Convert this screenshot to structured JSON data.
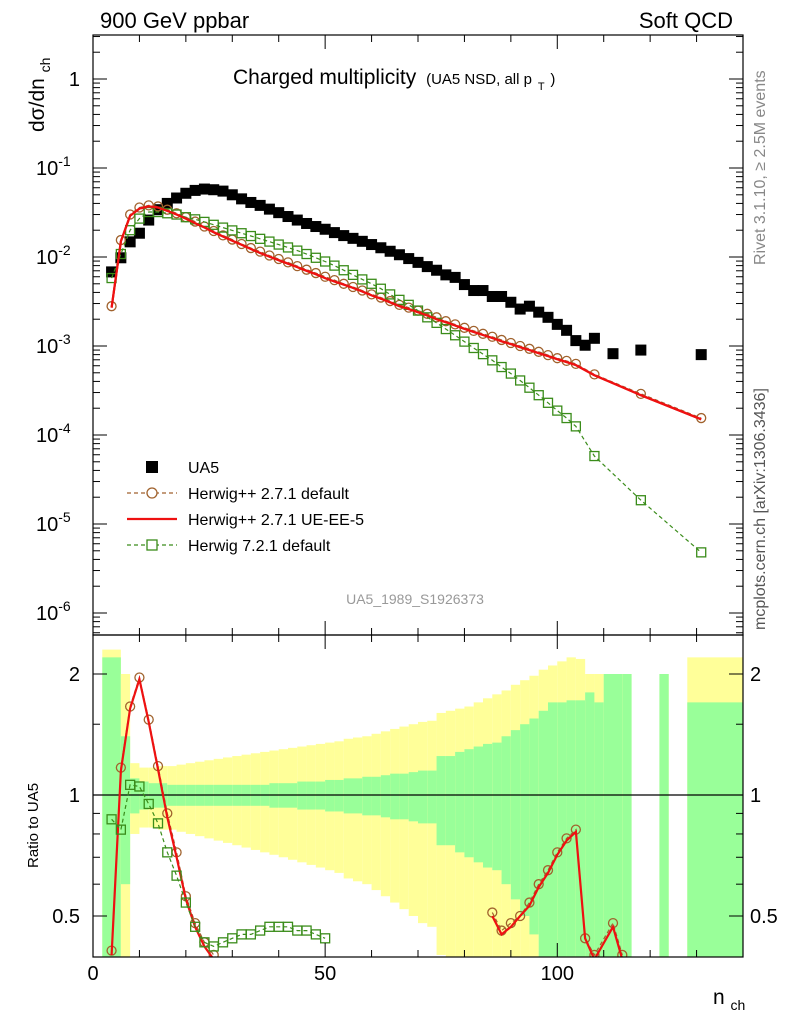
{
  "header": {
    "left_label": "900 GeV ppbar",
    "right_label": "Soft QCD"
  },
  "side_labels": {
    "rivet": "Rivet 3.1.10, ≥ 2.5M events",
    "mcplots": "mcplots.cern.ch [arXiv:1306.3436]"
  },
  "main_plot": {
    "title": "Charged multiplicity",
    "title_sub_prefix": "(UA5 NSD, all p",
    "title_sub_subscript": "T",
    "title_sub_suffix": ")",
    "ylabel_prefix": "dσ/dn",
    "ylabel_subscript": "ch",
    "analysis_label": "UA5_1989_S1926373",
    "y_tick_labels": {
      "one": "1",
      "ten": "10",
      "exponents": [
        "-1",
        "-2",
        "-3",
        "-4",
        "-5",
        "-6"
      ]
    }
  },
  "ratio_plot": {
    "ylabel": "Ratio to UA5",
    "y_tick_labels": [
      "2",
      "1",
      "0.5"
    ],
    "x_tick_labels": [
      "0",
      "50",
      "100"
    ],
    "xlabel_prefix": "n",
    "xlabel_subscript": "ch"
  },
  "legend": [
    {
      "label": "UA5",
      "color": "#000000",
      "marker": "square-filled",
      "line": "none"
    },
    {
      "label": "Herwig++ 2.7.1 default",
      "color": "#a0622d",
      "marker": "circle-open",
      "line": "dashed"
    },
    {
      "label": "Herwig++ 2.7.1 UE-EE-5",
      "color": "#ee1111",
      "marker": "none",
      "line": "solid"
    },
    {
      "label": "Herwig 7.2.1 default",
      "color": "#3a8c1a",
      "marker": "square-open",
      "line": "dashed"
    }
  ],
  "chart_data": [
    {
      "type": "scatter",
      "title": "Charged multiplicity (UA5 NSD, all pT)",
      "xlabel": "n_ch",
      "ylabel": "dσ/dn_ch",
      "yscale": "log",
      "xlim": [
        0,
        140
      ],
      "ylim": [
        5e-07,
        3
      ],
      "legend_position": "bottom-left",
      "series": [
        {
          "name": "UA5",
          "x": [
            4,
            6,
            8,
            10,
            12,
            14,
            16,
            18,
            20,
            22,
            24,
            26,
            28,
            30,
            32,
            34,
            36,
            38,
            40,
            42,
            44,
            46,
            48,
            50,
            52,
            54,
            56,
            58,
            60,
            62,
            64,
            66,
            68,
            70,
            72,
            74,
            76,
            78,
            80,
            82,
            84,
            86,
            88,
            90,
            92,
            94,
            96,
            98,
            100,
            102,
            104,
            106,
            108,
            112,
            118,
            131
          ],
          "values": [
            0.0068,
            0.0098,
            0.0148,
            0.0185,
            0.026,
            0.034,
            0.04,
            0.046,
            0.052,
            0.056,
            0.058,
            0.057,
            0.055,
            0.05,
            0.045,
            0.041,
            0.038,
            0.0345,
            0.0315,
            0.0285,
            0.026,
            0.0238,
            0.022,
            0.0205,
            0.0188,
            0.0174,
            0.0162,
            0.015,
            0.0138,
            0.0127,
            0.0116,
            0.0106,
            0.0096,
            0.0087,
            0.0078,
            0.0071,
            0.0063,
            0.0059,
            0.0049,
            0.0042,
            0.0042,
            0.0036,
            0.0036,
            0.0031,
            0.0026,
            0.0028,
            0.0024,
            0.0021,
            0.00175,
            0.0015,
            0.00115,
            0.00102,
            0.00122,
            0.00082,
            0.0009,
            0.0008
          ]
        },
        {
          "name": "Herwig++ 2.7.1 default",
          "x": [
            4,
            6,
            8,
            10,
            12,
            14,
            16,
            18,
            20,
            22,
            24,
            26,
            28,
            30,
            32,
            34,
            36,
            38,
            40,
            42,
            44,
            46,
            48,
            50,
            52,
            54,
            56,
            58,
            60,
            62,
            64,
            66,
            68,
            70,
            72,
            74,
            76,
            78,
            80,
            82,
            84,
            86,
            88,
            90,
            92,
            94,
            96,
            98,
            100,
            102,
            104,
            108,
            118,
            131
          ],
          "values": [
            0.0028,
            0.0155,
            0.03,
            0.036,
            0.038,
            0.037,
            0.034,
            0.031,
            0.028,
            0.025,
            0.022,
            0.0196,
            0.0175,
            0.0157,
            0.014,
            0.0126,
            0.0115,
            0.0104,
            0.0095,
            0.0087,
            0.0079,
            0.0072,
            0.0066,
            0.006,
            0.0055,
            0.005,
            0.0046,
            0.0042,
            0.0038,
            0.0035,
            0.0032,
            0.0029,
            0.0027,
            0.0025,
            0.0023,
            0.0021,
            0.0019,
            0.00175,
            0.0016,
            0.00148,
            0.00137,
            0.00127,
            0.00117,
            0.00108,
            0.001,
            0.00093,
            0.00086,
            0.00079,
            0.00073,
            0.00068,
            0.00063,
            0.00048,
            0.00029,
            0.000155
          ]
        },
        {
          "name": "Herwig++ 2.7.1 UE-EE-5",
          "x": [
            4,
            6,
            8,
            10,
            12,
            14,
            16,
            18,
            20,
            22,
            24,
            26,
            28,
            30,
            32,
            34,
            36,
            38,
            40,
            42,
            44,
            46,
            48,
            50,
            52,
            54,
            56,
            58,
            60,
            62,
            64,
            66,
            68,
            70,
            72,
            74,
            76,
            78,
            80,
            82,
            84,
            86,
            88,
            90,
            92,
            94,
            96,
            98,
            100,
            102,
            104,
            108,
            118,
            131
          ],
          "values": [
            0.0027,
            0.015,
            0.029,
            0.035,
            0.037,
            0.036,
            0.033,
            0.03,
            0.027,
            0.024,
            0.0215,
            0.019,
            0.017,
            0.0152,
            0.0137,
            0.0123,
            0.0111,
            0.0101,
            0.0092,
            0.0084,
            0.0077,
            0.007,
            0.0064,
            0.0058,
            0.0053,
            0.0049,
            0.0045,
            0.0041,
            0.0037,
            0.0034,
            0.0031,
            0.0028,
            0.0026,
            0.0024,
            0.0022,
            0.002,
            0.00185,
            0.0017,
            0.00156,
            0.00144,
            0.00133,
            0.00123,
            0.00113,
            0.00105,
            0.00097,
            0.0009,
            0.00083,
            0.00077,
            0.00071,
            0.00066,
            0.00061,
            0.00047,
            0.00028,
            0.00015
          ]
        },
        {
          "name": "Herwig 7.2.1 default",
          "x": [
            4,
            6,
            8,
            10,
            12,
            14,
            16,
            18,
            20,
            22,
            24,
            26,
            28,
            30,
            32,
            34,
            36,
            38,
            40,
            42,
            44,
            46,
            48,
            50,
            52,
            54,
            56,
            58,
            60,
            62,
            64,
            66,
            68,
            70,
            72,
            74,
            76,
            78,
            80,
            82,
            84,
            86,
            88,
            90,
            92,
            94,
            96,
            98,
            100,
            102,
            104,
            108,
            118,
            131
          ],
          "values": [
            0.0058,
            0.0108,
            0.02,
            0.027,
            0.032,
            0.032,
            0.031,
            0.03,
            0.028,
            0.0265,
            0.0248,
            0.023,
            0.0214,
            0.0199,
            0.0185,
            0.0172,
            0.016,
            0.0149,
            0.0138,
            0.0128,
            0.0118,
            0.0108,
            0.0098,
            0.0089,
            0.008,
            0.0071,
            0.0063,
            0.0056,
            0.005,
            0.0044,
            0.0038,
            0.0033,
            0.0029,
            0.0025,
            0.0021,
            0.00182,
            0.00155,
            0.00132,
            0.00112,
            0.00095,
            0.00081,
            0.00069,
            0.00058,
            0.00049,
            0.00041,
            0.00034,
            0.00028,
            0.00023,
            0.000188,
            0.000155,
            0.000125,
            5.8e-05,
            1.85e-05,
            4.8e-06
          ]
        }
      ]
    },
    {
      "type": "line",
      "title": "",
      "xlabel": "n_ch",
      "ylabel": "Ratio to UA5",
      "xlim": [
        0,
        140
      ],
      "ylim": [
        0.42,
        2.3
      ],
      "grid": false,
      "series": [
        {
          "name": "Herwig++ 2.7.1 default",
          "x": [
            4,
            6,
            8,
            10,
            12,
            14,
            16,
            18,
            20,
            22,
            24,
            26,
            28,
            30,
            86,
            88,
            90,
            92,
            94,
            96,
            98,
            100,
            102,
            104,
            106,
            108,
            112,
            114
          ],
          "values": [
            0.41,
            1.17,
            1.66,
            1.96,
            1.54,
            1.18,
            0.9,
            0.72,
            0.56,
            0.48,
            0.43,
            0.4,
            0.38,
            0.38,
            0.51,
            0.46,
            0.48,
            0.5,
            0.54,
            0.6,
            0.65,
            0.72,
            0.78,
            0.82,
            0.44,
            0.4,
            0.48,
            0.4
          ]
        },
        {
          "name": "Herwig++ 2.7.1 UE-EE-5",
          "x": [
            4,
            6,
            8,
            10,
            12,
            14,
            16,
            18,
            20,
            22,
            24,
            26,
            28,
            30,
            86,
            88,
            90,
            92,
            94,
            96,
            98,
            100,
            102,
            104,
            106,
            108,
            112,
            114
          ],
          "values": [
            0.4,
            1.15,
            1.64,
            1.94,
            1.52,
            1.16,
            0.88,
            0.7,
            0.55,
            0.47,
            0.42,
            0.39,
            0.37,
            0.37,
            0.5,
            0.45,
            0.47,
            0.5,
            0.53,
            0.59,
            0.64,
            0.71,
            0.77,
            0.81,
            0.44,
            0.39,
            0.47,
            0.39
          ]
        },
        {
          "name": "Herwig 7.2.1 default",
          "x": [
            4,
            6,
            8,
            10,
            12,
            14,
            16,
            18,
            20,
            22,
            24,
            26,
            28,
            30,
            32,
            34,
            36,
            38,
            40,
            42,
            44,
            46,
            48,
            50
          ],
          "values": [
            0.87,
            0.82,
            1.06,
            1.05,
            0.95,
            0.85,
            0.72,
            0.63,
            0.54,
            0.47,
            0.43,
            0.42,
            0.43,
            0.44,
            0.45,
            0.45,
            0.46,
            0.47,
            0.47,
            0.47,
            0.46,
            0.46,
            0.45,
            0.44
          ]
        }
      ],
      "bands": {
        "edges": [
          2,
          6,
          8,
          10,
          12,
          14,
          16,
          18,
          20,
          22,
          24,
          26,
          28,
          30,
          32,
          34,
          36,
          38,
          40,
          42,
          44,
          46,
          48,
          50,
          52,
          54,
          56,
          58,
          60,
          62,
          64,
          66,
          68,
          70,
          72,
          74,
          76,
          78,
          80,
          82,
          84,
          86,
          88,
          90,
          92,
          94,
          96,
          98,
          100,
          102,
          104,
          106,
          108,
          110,
          112,
          114,
          116,
          122,
          124,
          128,
          142
        ],
        "stat_half": [
          1.2,
          0.4,
          0.1,
          0.08,
          0.07,
          0.07,
          0.06,
          0.06,
          0.06,
          0.06,
          0.06,
          0.06,
          0.06,
          0.06,
          0.06,
          0.06,
          0.06,
          0.07,
          0.07,
          0.07,
          0.08,
          0.08,
          0.08,
          0.09,
          0.09,
          0.1,
          0.1,
          0.11,
          0.11,
          0.12,
          0.13,
          0.13,
          0.14,
          0.15,
          0.15,
          0.25,
          0.25,
          0.28,
          0.3,
          0.32,
          0.34,
          0.35,
          0.4,
          0.45,
          0.5,
          0.55,
          0.62,
          0.7,
          0.7,
          0.72,
          0.72,
          0.8,
          0.7,
          1.0,
          1.0,
          1.0,
          0.0,
          1.0,
          0.0,
          0.7
        ],
        "total_half": [
          1.3,
          1.0,
          0.2,
          0.17,
          0.17,
          0.18,
          0.18,
          0.19,
          0.2,
          0.21,
          0.22,
          0.23,
          0.24,
          0.25,
          0.26,
          0.27,
          0.28,
          0.29,
          0.3,
          0.31,
          0.32,
          0.33,
          0.34,
          0.35,
          0.36,
          0.38,
          0.39,
          0.4,
          0.42,
          0.44,
          0.46,
          0.48,
          0.5,
          0.52,
          0.53,
          0.6,
          0.62,
          0.64,
          0.66,
          0.7,
          0.74,
          0.78,
          0.82,
          0.88,
          0.93,
          0.98,
          1.05,
          1.1,
          1.15,
          1.2,
          1.18,
          1.0,
          1.0,
          1.0,
          1.0,
          1.0,
          0.0,
          1.0,
          0.0,
          1.2
        ]
      }
    }
  ]
}
